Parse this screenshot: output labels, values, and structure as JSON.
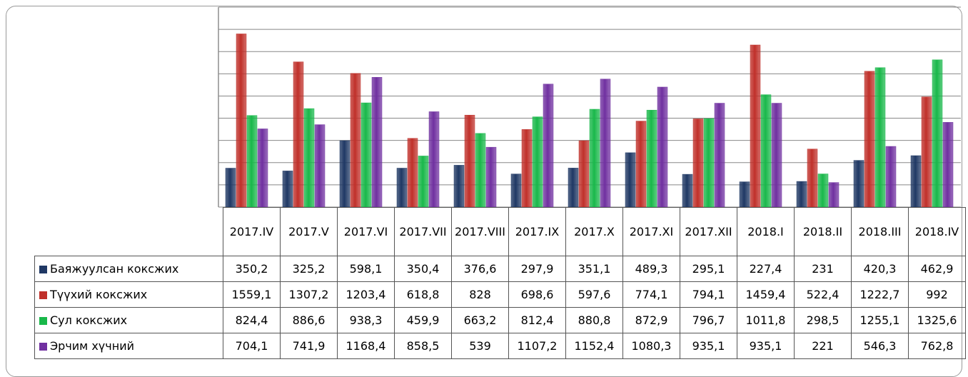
{
  "chart_data": {
    "type": "bar",
    "categories": [
      "2017.IV",
      "2017.V",
      "2017.VI",
      "2017.VII",
      "2017.VIII",
      "2017.IX",
      "2017.X",
      "2017.XI",
      "2017.XII",
      "2018.I",
      "2018.II",
      "2018.III",
      "2018.IV"
    ],
    "series": [
      {
        "name": "Баяжуулсан коксжих",
        "color": "#1f3864",
        "values": [
          350.2,
          325.2,
          598.1,
          350.4,
          376.6,
          297.9,
          351.1,
          489.3,
          295.1,
          227.4,
          231,
          420.3,
          462.9
        ],
        "value_labels": [
          "350,2",
          "325,2",
          "598,1",
          "350,4",
          "376,6",
          "297,9",
          "351,1",
          "489,3",
          "295,1",
          "227,4",
          "231",
          "420,3",
          "462,9"
        ]
      },
      {
        "name": "Түүхий коксжих",
        "color": "#c0302a",
        "values": [
          1559.1,
          1307.2,
          1203.4,
          618.8,
          828,
          698.6,
          597.6,
          774.1,
          794.1,
          1459.4,
          522.4,
          1222.7,
          992
        ],
        "value_labels": [
          "1559,1",
          "1307,2",
          "1203,4",
          "618,8",
          "828",
          "698,6",
          "597,6",
          "774,1",
          "794,1",
          "1459,4",
          "522,4",
          "1222,7",
          "992"
        ]
      },
      {
        "name": "Сул коксжих",
        "color": "#19b84a",
        "values": [
          824.4,
          886.6,
          938.3,
          459.9,
          663.2,
          812.4,
          880.8,
          872.9,
          796.7,
          1011.8,
          298.5,
          1255.1,
          1325.6
        ],
        "value_labels": [
          "824,4",
          "886,6",
          "938,3",
          "459,9",
          "663,2",
          "812,4",
          "880,8",
          "872,9",
          "796,7",
          "1011,8",
          "298,5",
          "1255,1",
          "1325,6"
        ]
      },
      {
        "name": "Эрчим хүчний",
        "color": "#7030a0",
        "values": [
          704.1,
          741.9,
          1168.4,
          858.5,
          539,
          1107.2,
          1152.4,
          1080.3,
          935.1,
          935.1,
          221,
          546.3,
          762.8
        ],
        "value_labels": [
          "704,1",
          "741,9",
          "1168,4",
          "858,5",
          "539",
          "1107,2",
          "1152,4",
          "1080,3",
          "935,1",
          "935,1",
          "221",
          "546,3",
          "762,8"
        ]
      }
    ],
    "ylim": [
      0,
      1800
    ],
    "yticks": [
      0,
      200,
      400,
      600,
      800,
      1000,
      1200,
      1400,
      1600,
      1800
    ],
    "grid": true
  }
}
